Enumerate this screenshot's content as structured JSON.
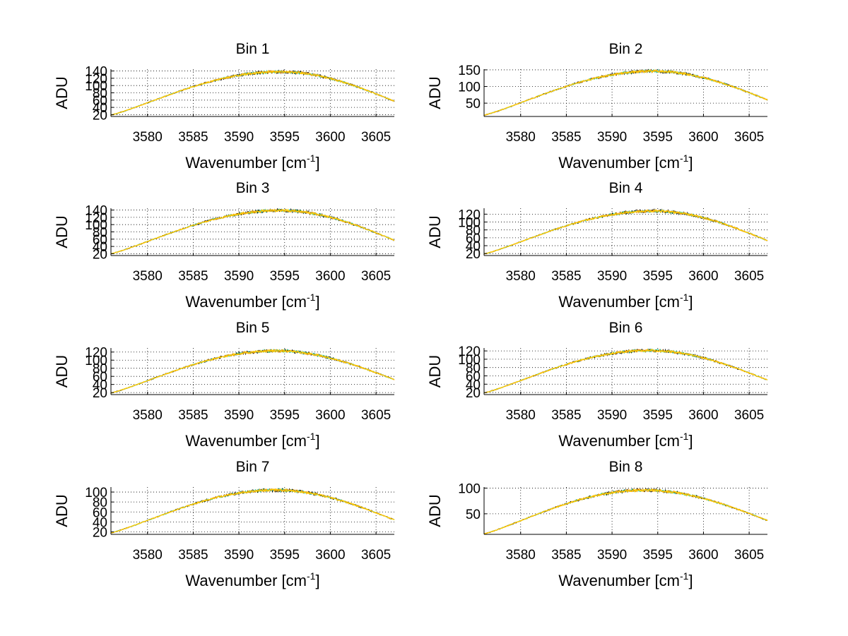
{
  "figure": {
    "background": "#ffffff"
  },
  "colors": {
    "series_a": "#000000",
    "series_b": "#33cc99",
    "series_c": "#ffcc00",
    "series_d": "#ff9900"
  },
  "chart_data": [
    {
      "type": "line",
      "title": "Bin 1",
      "xlabel_main": "Wavenumber [cm",
      "xlabel_sup": "-1",
      "xlabel_close": "]",
      "ylabel": "ADU",
      "xlim": [
        3576,
        3607
      ],
      "ylim": [
        15,
        145
      ],
      "grid": true,
      "xticks": [
        3580,
        3585,
        3590,
        3595,
        3600,
        3605
      ],
      "xtick_labels": [
        "3580",
        "3585",
        "3590",
        "3595",
        "3600",
        "3605"
      ],
      "yticks": [
        20,
        40,
        60,
        80,
        100,
        120,
        140
      ],
      "ytick_labels": [
        "20",
        "40",
        "60",
        "80",
        "100",
        "120",
        "140"
      ],
      "curve": {
        "x_peak": 3594.5,
        "peak": 138,
        "left": 19,
        "right": 57
      }
    },
    {
      "type": "line",
      "title": "Bin 2",
      "xlabel_main": "Wavenumber [cm",
      "xlabel_sup": "-1",
      "xlabel_close": "]",
      "ylabel": "ADU",
      "xlim": [
        3576,
        3607
      ],
      "ylim": [
        10,
        152
      ],
      "grid": true,
      "xticks": [
        3580,
        3585,
        3590,
        3595,
        3600,
        3605
      ],
      "xtick_labels": [
        "3580",
        "3585",
        "3590",
        "3595",
        "3600",
        "3605"
      ],
      "yticks": [
        50,
        100,
        150
      ],
      "ytick_labels": [
        "50",
        "100",
        "150"
      ],
      "curve": {
        "x_peak": 3594.5,
        "peak": 146,
        "left": 14,
        "right": 60
      }
    },
    {
      "type": "line",
      "title": "Bin 3",
      "xlabel_main": "Wavenumber [cm",
      "xlabel_sup": "-1",
      "xlabel_close": "]",
      "ylabel": "ADU",
      "xlim": [
        3576,
        3607
      ],
      "ylim": [
        15,
        145
      ],
      "grid": true,
      "xticks": [
        3580,
        3585,
        3590,
        3595,
        3600,
        3605
      ],
      "xtick_labels": [
        "3580",
        "3585",
        "3590",
        "3595",
        "3600",
        "3605"
      ],
      "yticks": [
        20,
        40,
        60,
        80,
        100,
        120,
        140
      ],
      "ytick_labels": [
        "20",
        "40",
        "60",
        "80",
        "100",
        "120",
        "140"
      ],
      "curve": {
        "x_peak": 3594.5,
        "peak": 139,
        "left": 20,
        "right": 57
      }
    },
    {
      "type": "line",
      "title": "Bin 4",
      "xlabel_main": "Wavenumber [cm",
      "xlabel_sup": "-1",
      "xlabel_close": "]",
      "ylabel": "ADU",
      "xlim": [
        3576,
        3607
      ],
      "ylim": [
        15,
        135
      ],
      "grid": true,
      "xticks": [
        3580,
        3585,
        3590,
        3595,
        3600,
        3605
      ],
      "xtick_labels": [
        "3580",
        "3585",
        "3590",
        "3595",
        "3600",
        "3605"
      ],
      "yticks": [
        20,
        40,
        60,
        80,
        100,
        120
      ],
      "ytick_labels": [
        "20",
        "40",
        "60",
        "80",
        "100",
        "120"
      ],
      "curve": {
        "x_peak": 3594.5,
        "peak": 128,
        "left": 19,
        "right": 53
      }
    },
    {
      "type": "line",
      "title": "Bin 5",
      "xlabel_main": "Wavenumber [cm",
      "xlabel_sup": "-1",
      "xlabel_close": "]",
      "ylabel": "ADU",
      "xlim": [
        3576,
        3607
      ],
      "ylim": [
        15,
        130
      ],
      "grid": true,
      "xticks": [
        3580,
        3585,
        3590,
        3595,
        3600,
        3605
      ],
      "xtick_labels": [
        "3580",
        "3585",
        "3590",
        "3595",
        "3600",
        "3605"
      ],
      "yticks": [
        20,
        40,
        60,
        80,
        100,
        120
      ],
      "ytick_labels": [
        "20",
        "40",
        "60",
        "80",
        "100",
        "120"
      ],
      "curve": {
        "x_peak": 3594,
        "peak": 123,
        "left": 19,
        "right": 52
      }
    },
    {
      "type": "line",
      "title": "Bin 6",
      "xlabel_main": "Wavenumber [cm",
      "xlabel_sup": "-1",
      "xlabel_close": "]",
      "ylabel": "ADU",
      "xlim": [
        3576,
        3607
      ],
      "ylim": [
        15,
        127
      ],
      "grid": true,
      "xticks": [
        3580,
        3585,
        3590,
        3595,
        3600,
        3605
      ],
      "xtick_labels": [
        "3580",
        "3585",
        "3590",
        "3595",
        "3600",
        "3605"
      ],
      "yticks": [
        20,
        40,
        60,
        80,
        100,
        120
      ],
      "ytick_labels": [
        "20",
        "40",
        "60",
        "80",
        "100",
        "120"
      ],
      "curve": {
        "x_peak": 3594,
        "peak": 121,
        "left": 19,
        "right": 50
      }
    },
    {
      "type": "line",
      "title": "Bin 7",
      "xlabel_main": "Wavenumber [cm",
      "xlabel_sup": "-1",
      "xlabel_close": "]",
      "ylabel": "ADU",
      "xlim": [
        3576,
        3607
      ],
      "ylim": [
        15,
        110
      ],
      "grid": true,
      "xticks": [
        3580,
        3585,
        3590,
        3595,
        3600,
        3605
      ],
      "xtick_labels": [
        "3580",
        "3585",
        "3590",
        "3595",
        "3600",
        "3605"
      ],
      "yticks": [
        20,
        40,
        60,
        80,
        100
      ],
      "ytick_labels": [
        "20",
        "40",
        "60",
        "80",
        "100"
      ],
      "curve": {
        "x_peak": 3594,
        "peak": 104,
        "left": 18,
        "right": 44
      }
    },
    {
      "type": "line",
      "title": "Bin 8",
      "xlabel_main": "Wavenumber [cm",
      "xlabel_sup": "-1",
      "xlabel_close": "]",
      "ylabel": "ADU",
      "xlim": [
        3576,
        3607
      ],
      "ylim": [
        10,
        102
      ],
      "grid": true,
      "xticks": [
        3580,
        3585,
        3590,
        3595,
        3600,
        3605
      ],
      "xtick_labels": [
        "3580",
        "3585",
        "3590",
        "3595",
        "3600",
        "3605"
      ],
      "yticks": [
        50,
        100
      ],
      "ytick_labels": [
        "50",
        "100"
      ],
      "curve": {
        "x_peak": 3593.5,
        "peak": 96,
        "left": 11,
        "right": 37
      }
    }
  ]
}
